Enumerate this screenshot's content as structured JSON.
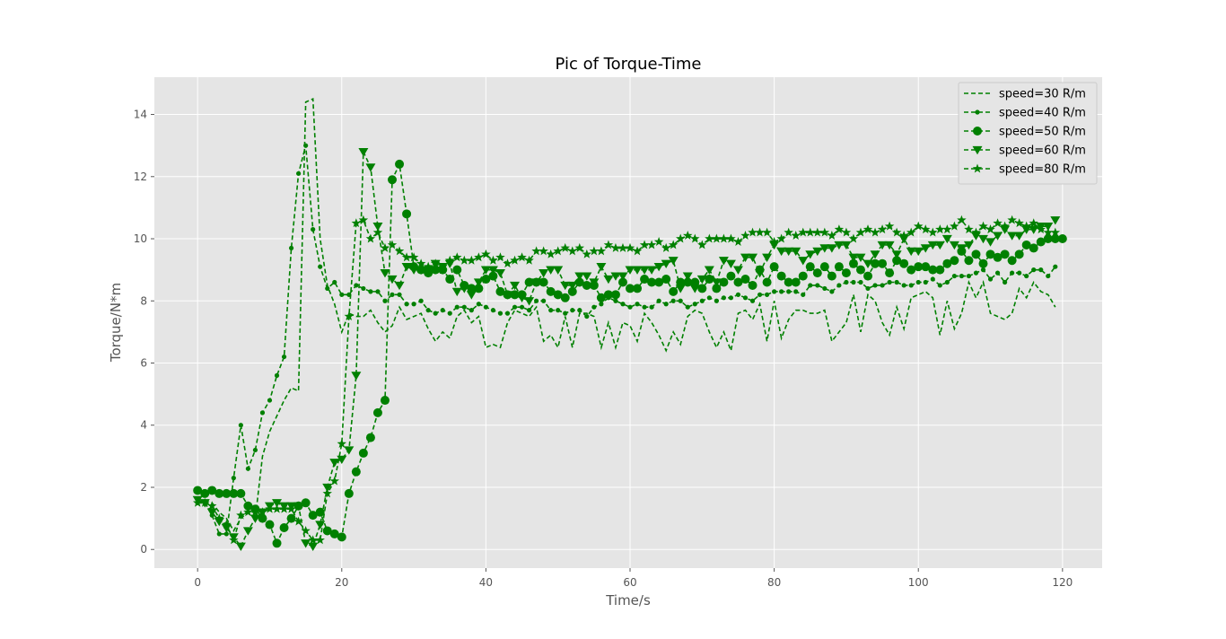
{
  "chart_data": {
    "type": "line",
    "title": "Pic of Torque-Time",
    "xlabel": "Time/s",
    "ylabel": "Torque/N*m",
    "xlim": [
      -6,
      125.5
    ],
    "ylim": [
      -0.6,
      15.2
    ],
    "xticks": [
      0,
      20,
      40,
      60,
      80,
      100,
      120
    ],
    "yticks": [
      0,
      2,
      4,
      6,
      8,
      10,
      12,
      14
    ],
    "grid": true,
    "legend_position": "top-right",
    "color": "#008000",
    "background": "#e5e5e5",
    "series": [
      {
        "name": "speed=30 R/m",
        "marker": "none",
        "x": [
          0,
          1,
          2,
          3,
          4,
          5,
          6,
          7,
          8,
          9,
          10,
          11,
          12,
          13,
          14,
          15,
          16,
          17,
          18,
          19,
          20,
          21,
          22,
          23,
          24,
          25,
          26,
          27,
          28,
          29,
          30,
          31,
          32,
          33,
          34,
          35,
          36,
          37,
          38,
          39,
          40,
          41,
          42,
          43,
          44,
          45,
          46,
          47,
          48,
          49,
          50,
          51,
          52,
          53,
          54,
          55,
          56,
          57,
          58,
          59,
          60,
          61,
          62,
          63,
          64,
          65,
          66,
          67,
          68,
          69,
          70,
          71,
          72,
          73,
          74,
          75,
          76,
          77,
          78,
          79,
          80,
          81,
          82,
          83,
          84,
          85,
          86,
          87,
          88,
          89,
          90,
          91,
          92,
          93,
          94,
          95,
          96,
          97,
          98,
          99,
          100,
          101,
          102,
          103,
          104,
          105,
          106,
          107,
          108,
          109,
          110,
          111,
          112,
          113,
          114,
          115,
          116,
          117,
          118,
          119
        ],
        "y": [
          1.6,
          1.5,
          1.5,
          1.2,
          1.0,
          0.6,
          1.0,
          1.2,
          1.0,
          3.0,
          3.8,
          4.3,
          4.8,
          5.2,
          5.1,
          14.4,
          14.5,
          10.0,
          8.5,
          7.9,
          7.0,
          7.6,
          7.5,
          7.5,
          7.7,
          7.3,
          7.0,
          7.2,
          7.8,
          7.4,
          7.5,
          7.6,
          7.1,
          6.7,
          7.0,
          6.8,
          7.5,
          7.7,
          7.3,
          7.5,
          6.5,
          6.6,
          6.5,
          7.3,
          7.7,
          7.6,
          7.5,
          7.8,
          6.7,
          6.9,
          6.5,
          7.5,
          6.5,
          7.6,
          7.6,
          7.5,
          6.5,
          7.3,
          6.5,
          7.3,
          7.2,
          6.7,
          7.6,
          7.3,
          6.9,
          6.4,
          7.0,
          6.6,
          7.5,
          7.7,
          7.6,
          7.0,
          6.5,
          7.0,
          6.4,
          7.6,
          7.7,
          7.4,
          7.9,
          6.7,
          8.0,
          6.8,
          7.4,
          7.7,
          7.7,
          7.6,
          7.6,
          7.7,
          6.7,
          7.0,
          7.3,
          8.2,
          7.0,
          8.2,
          8.0,
          7.3,
          6.9,
          7.8,
          7.1,
          8.1,
          8.2,
          8.3,
          8.1,
          6.9,
          8.0,
          7.1,
          7.6,
          8.6,
          8.1,
          8.6,
          7.6,
          7.5,
          7.4,
          7.6,
          8.4,
          8.1,
          8.6,
          8.3,
          8.2,
          7.8
        ]
      },
      {
        "name": "speed=40 R/m",
        "marker": "dot",
        "x": [
          0,
          1,
          2,
          3,
          4,
          5,
          6,
          7,
          8,
          9,
          10,
          11,
          12,
          13,
          14,
          15,
          16,
          17,
          18,
          19,
          20,
          21,
          22,
          23,
          24,
          25,
          26,
          27,
          28,
          29,
          30,
          31,
          32,
          33,
          34,
          35,
          36,
          37,
          38,
          39,
          40,
          41,
          42,
          43,
          44,
          45,
          46,
          47,
          48,
          49,
          50,
          51,
          52,
          53,
          54,
          55,
          56,
          57,
          58,
          59,
          60,
          61,
          62,
          63,
          64,
          65,
          66,
          67,
          68,
          69,
          70,
          71,
          72,
          73,
          74,
          75,
          76,
          77,
          78,
          79,
          80,
          81,
          82,
          83,
          84,
          85,
          86,
          87,
          88,
          89,
          90,
          91,
          92,
          93,
          94,
          95,
          96,
          97,
          98,
          99,
          100,
          101,
          102,
          103,
          104,
          105,
          106,
          107,
          108,
          109,
          110,
          111,
          112,
          113,
          114,
          115,
          116,
          117,
          118,
          119
        ],
        "y": [
          1.5,
          1.5,
          1.1,
          0.5,
          0.5,
          2.3,
          4.0,
          2.6,
          3.2,
          4.4,
          4.8,
          5.6,
          6.2,
          9.7,
          12.1,
          13.0,
          10.3,
          9.1,
          8.4,
          8.6,
          8.2,
          8.2,
          8.5,
          8.4,
          8.3,
          8.3,
          8.0,
          8.2,
          8.2,
          7.9,
          7.9,
          8.0,
          7.7,
          7.6,
          7.7,
          7.6,
          7.8,
          7.8,
          7.7,
          7.9,
          7.8,
          7.7,
          7.6,
          7.6,
          7.8,
          7.8,
          7.7,
          8.0,
          8.0,
          7.7,
          7.7,
          7.6,
          7.7,
          7.7,
          7.5,
          7.8,
          7.9,
          8.1,
          8.0,
          7.9,
          7.8,
          7.9,
          7.8,
          7.8,
          8.0,
          7.9,
          8.0,
          8.0,
          7.8,
          7.9,
          8.0,
          8.1,
          8.0,
          8.1,
          8.1,
          8.2,
          8.1,
          8.0,
          8.2,
          8.2,
          8.3,
          8.3,
          8.3,
          8.3,
          8.2,
          8.5,
          8.5,
          8.4,
          8.3,
          8.5,
          8.6,
          8.6,
          8.6,
          8.4,
          8.5,
          8.5,
          8.6,
          8.6,
          8.5,
          8.5,
          8.6,
          8.6,
          8.7,
          8.5,
          8.6,
          8.8,
          8.8,
          8.8,
          8.9,
          9.0,
          8.7,
          8.9,
          8.6,
          8.9,
          8.9,
          8.8,
          9.0,
          9.0,
          8.8,
          9.1
        ]
      },
      {
        "name": "speed=50 R/m",
        "marker": "circle",
        "x": [
          0,
          1,
          2,
          3,
          4,
          5,
          6,
          7,
          8,
          9,
          10,
          11,
          12,
          13,
          14,
          15,
          16,
          17,
          18,
          19,
          20,
          21,
          22,
          23,
          24,
          25,
          26,
          27,
          28,
          29,
          30,
          31,
          32,
          33,
          34,
          35,
          36,
          37,
          38,
          39,
          40,
          41,
          42,
          43,
          44,
          45,
          46,
          47,
          48,
          49,
          50,
          51,
          52,
          53,
          54,
          55,
          56,
          57,
          58,
          59,
          60,
          61,
          62,
          63,
          64,
          65,
          66,
          67,
          68,
          69,
          70,
          71,
          72,
          73,
          74,
          75,
          76,
          77,
          78,
          79,
          80,
          81,
          82,
          83,
          84,
          85,
          86,
          87,
          88,
          89,
          90,
          91,
          92,
          93,
          94,
          95,
          96,
          97,
          98,
          99,
          100,
          101,
          102,
          103,
          104,
          105,
          106,
          107,
          108,
          109,
          110,
          111,
          112,
          113,
          114,
          115,
          116,
          117,
          118,
          119,
          120
        ],
        "y": [
          1.9,
          1.8,
          1.9,
          1.8,
          1.8,
          1.8,
          1.8,
          1.4,
          1.3,
          1.0,
          0.8,
          0.2,
          0.7,
          1.0,
          1.4,
          1.5,
          1.1,
          1.2,
          0.6,
          0.5,
          0.4,
          1.8,
          2.5,
          3.1,
          3.6,
          4.4,
          4.8,
          11.9,
          12.4,
          10.8,
          9.1,
          9.0,
          8.9,
          9.0,
          9.0,
          8.7,
          9.0,
          8.5,
          8.4,
          8.4,
          8.7,
          8.8,
          8.3,
          8.2,
          8.2,
          8.2,
          8.6,
          8.6,
          8.6,
          8.3,
          8.2,
          8.1,
          8.3,
          8.6,
          8.5,
          8.5,
          8.1,
          8.2,
          8.2,
          8.6,
          8.4,
          8.4,
          8.7,
          8.6,
          8.6,
          8.7,
          8.3,
          8.6,
          8.6,
          8.6,
          8.4,
          8.7,
          8.4,
          8.6,
          8.8,
          8.6,
          8.7,
          8.5,
          9.0,
          8.6,
          9.1,
          8.8,
          8.6,
          8.6,
          8.8,
          9.1,
          8.9,
          9.1,
          8.8,
          9.1,
          8.9,
          9.2,
          9.0,
          8.8,
          9.2,
          9.2,
          8.9,
          9.3,
          9.2,
          9.0,
          9.1,
          9.1,
          9.0,
          9.0,
          9.2,
          9.3,
          9.6,
          9.3,
          9.5,
          9.2,
          9.5,
          9.4,
          9.5,
          9.3,
          9.5,
          9.8,
          9.7,
          9.9,
          10.0,
          10.0,
          10.0
        ]
      },
      {
        "name": "speed=60 R/m",
        "marker": "triangle_down",
        "x": [
          0,
          1,
          2,
          3,
          4,
          5,
          6,
          7,
          8,
          9,
          10,
          11,
          12,
          13,
          14,
          15,
          16,
          17,
          18,
          19,
          20,
          21,
          22,
          23,
          24,
          25,
          26,
          27,
          28,
          29,
          30,
          31,
          32,
          33,
          34,
          35,
          36,
          37,
          38,
          39,
          40,
          41,
          42,
          43,
          44,
          45,
          46,
          47,
          48,
          49,
          50,
          51,
          52,
          53,
          54,
          55,
          56,
          57,
          58,
          59,
          60,
          61,
          62,
          63,
          64,
          65,
          66,
          67,
          68,
          69,
          70,
          71,
          72,
          73,
          74,
          75,
          76,
          77,
          78,
          79,
          80,
          81,
          82,
          83,
          84,
          85,
          86,
          87,
          88,
          89,
          90,
          91,
          92,
          93,
          94,
          95,
          96,
          97,
          98,
          99,
          100,
          101,
          102,
          103,
          104,
          105,
          106,
          107,
          108,
          109,
          110,
          111,
          112,
          113,
          114,
          115,
          116,
          117,
          118,
          119
        ],
        "y": [
          1.6,
          1.5,
          1.2,
          0.9,
          0.7,
          0.4,
          0.1,
          0.6,
          1.0,
          1.2,
          1.4,
          1.5,
          1.4,
          1.4,
          1.4,
          0.2,
          0.1,
          0.8,
          2.0,
          2.8,
          2.9,
          3.2,
          5.6,
          12.8,
          12.3,
          10.4,
          8.9,
          8.7,
          8.5,
          9.1,
          9.0,
          9.0,
          9.0,
          9.2,
          9.1,
          9.2,
          8.3,
          8.4,
          8.2,
          8.6,
          9.0,
          9.0,
          8.9,
          8.2,
          8.5,
          8.1,
          8.0,
          8.6,
          8.9,
          9.0,
          9.0,
          8.5,
          8.5,
          8.8,
          8.8,
          8.6,
          9.1,
          8.7,
          8.8,
          8.8,
          9.0,
          9.0,
          9.0,
          9.0,
          9.1,
          9.2,
          9.3,
          8.4,
          8.8,
          8.4,
          8.7,
          9.0,
          8.6,
          9.3,
          9.2,
          9.0,
          9.4,
          9.4,
          8.9,
          9.4,
          9.8,
          9.6,
          9.6,
          9.6,
          9.3,
          9.5,
          9.6,
          9.7,
          9.7,
          9.8,
          9.8,
          9.4,
          9.4,
          9.2,
          9.5,
          9.8,
          9.8,
          9.5,
          10.0,
          9.6,
          9.6,
          9.7,
          9.8,
          9.8,
          10.0,
          9.8,
          9.7,
          9.8,
          10.1,
          10.0,
          9.9,
          10.1,
          10.3,
          10.1,
          10.1,
          10.3,
          10.3,
          10.4,
          10.4,
          10.6
        ]
      },
      {
        "name": "speed=80 R/m",
        "marker": "star",
        "x": [
          0,
          1,
          2,
          3,
          4,
          5,
          6,
          7,
          8,
          9,
          10,
          11,
          12,
          13,
          14,
          15,
          16,
          17,
          18,
          19,
          20,
          21,
          22,
          23,
          24,
          25,
          26,
          27,
          28,
          29,
          30,
          31,
          32,
          33,
          34,
          35,
          36,
          37,
          38,
          39,
          40,
          41,
          42,
          43,
          44,
          45,
          46,
          47,
          48,
          49,
          50,
          51,
          52,
          53,
          54,
          55,
          56,
          57,
          58,
          59,
          60,
          61,
          62,
          63,
          64,
          65,
          66,
          67,
          68,
          69,
          70,
          71,
          72,
          73,
          74,
          75,
          76,
          77,
          78,
          79,
          80,
          81,
          82,
          83,
          84,
          85,
          86,
          87,
          88,
          89,
          90,
          91,
          92,
          93,
          94,
          95,
          96,
          97,
          98,
          99,
          100,
          101,
          102,
          103,
          104,
          105,
          106,
          107,
          108,
          109,
          110,
          111,
          112,
          113,
          114,
          115,
          116,
          117,
          118,
          119
        ],
        "y": [
          1.5,
          1.5,
          1.4,
          1.0,
          0.8,
          0.3,
          1.1,
          1.2,
          1.2,
          1.2,
          1.3,
          1.3,
          1.3,
          1.3,
          0.9,
          0.6,
          0.3,
          0.3,
          1.8,
          2.2,
          3.4,
          7.5,
          10.5,
          10.6,
          10.0,
          10.2,
          9.7,
          9.8,
          9.6,
          9.4,
          9.4,
          9.2,
          9.1,
          9.2,
          9.0,
          9.3,
          9.4,
          9.3,
          9.3,
          9.4,
          9.5,
          9.3,
          9.4,
          9.2,
          9.3,
          9.4,
          9.3,
          9.6,
          9.6,
          9.5,
          9.6,
          9.7,
          9.6,
          9.7,
          9.5,
          9.6,
          9.6,
          9.8,
          9.7,
          9.7,
          9.7,
          9.6,
          9.8,
          9.8,
          9.9,
          9.7,
          9.8,
          10.0,
          10.1,
          10.0,
          9.8,
          10.0,
          10.0,
          10.0,
          10.0,
          9.9,
          10.1,
          10.2,
          10.2,
          10.2,
          9.9,
          10.0,
          10.2,
          10.1,
          10.2,
          10.2,
          10.2,
          10.2,
          10.1,
          10.3,
          10.2,
          10.0,
          10.2,
          10.3,
          10.2,
          10.3,
          10.4,
          10.2,
          10.1,
          10.2,
          10.4,
          10.3,
          10.2,
          10.3,
          10.3,
          10.4,
          10.6,
          10.3,
          10.2,
          10.4,
          10.3,
          10.5,
          10.4,
          10.6,
          10.5,
          10.4,
          10.5,
          10.3,
          10.2,
          10.2
        ]
      }
    ]
  }
}
